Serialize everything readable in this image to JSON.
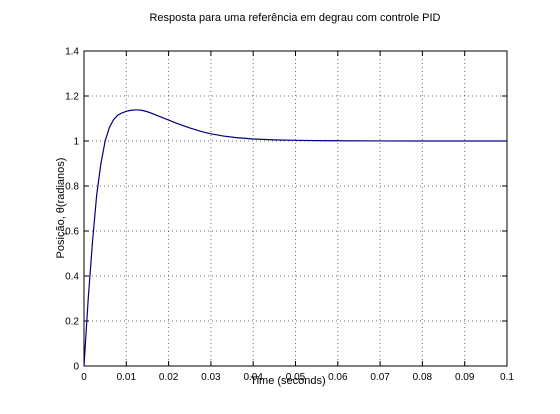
{
  "chart_data": {
    "type": "line",
    "title": "Resposta para uma referência em degrau com controle PID",
    "xlabel": "Time (seconds)",
    "ylabel": "Posição, θ(radianos)",
    "xlim": [
      0,
      0.1
    ],
    "ylim": [
      0,
      1.4
    ],
    "grid": true,
    "x_ticks": [
      0,
      0.01,
      0.02,
      0.03,
      0.04,
      0.05,
      0.06,
      0.07,
      0.08,
      0.09,
      0.1
    ],
    "x_tick_labels": [
      "0",
      "0.01",
      "0.02",
      "0.03",
      "0.04",
      "0.05",
      "0.06",
      "0.07",
      "0.08",
      "0.09",
      "0.1"
    ],
    "y_ticks": [
      0,
      0.2,
      0.4,
      0.6,
      0.8,
      1,
      1.2,
      1.4
    ],
    "y_tick_labels": [
      "0",
      "0.2",
      "0.4",
      "0.6",
      "0.8",
      "1",
      "1.2",
      "1.4"
    ],
    "line_color": "#00007f",
    "series": [
      {
        "x": [
          0,
          0.001,
          0.002,
          0.003,
          0.004,
          0.005,
          0.006,
          0.007,
          0.008,
          0.009,
          0.01,
          0.011,
          0.012,
          0.013,
          0.014,
          0.015,
          0.016,
          0.018,
          0.02,
          0.022,
          0.025,
          0.028,
          0.03,
          0.033,
          0.036,
          0.04,
          0.045,
          0.05,
          0.055,
          0.06,
          0.07,
          0.08,
          0.09,
          0.1
        ],
        "y": [
          0,
          0.3,
          0.55,
          0.76,
          0.9,
          1.0,
          1.06,
          1.095,
          1.115,
          1.125,
          1.132,
          1.136,
          1.138,
          1.138,
          1.135,
          1.13,
          1.123,
          1.108,
          1.093,
          1.078,
          1.058,
          1.041,
          1.032,
          1.022,
          1.015,
          1.009,
          1.005,
          1.003,
          1.0015,
          1.001,
          1.0003,
          1.0001,
          1.0,
          1.0
        ]
      }
    ]
  }
}
